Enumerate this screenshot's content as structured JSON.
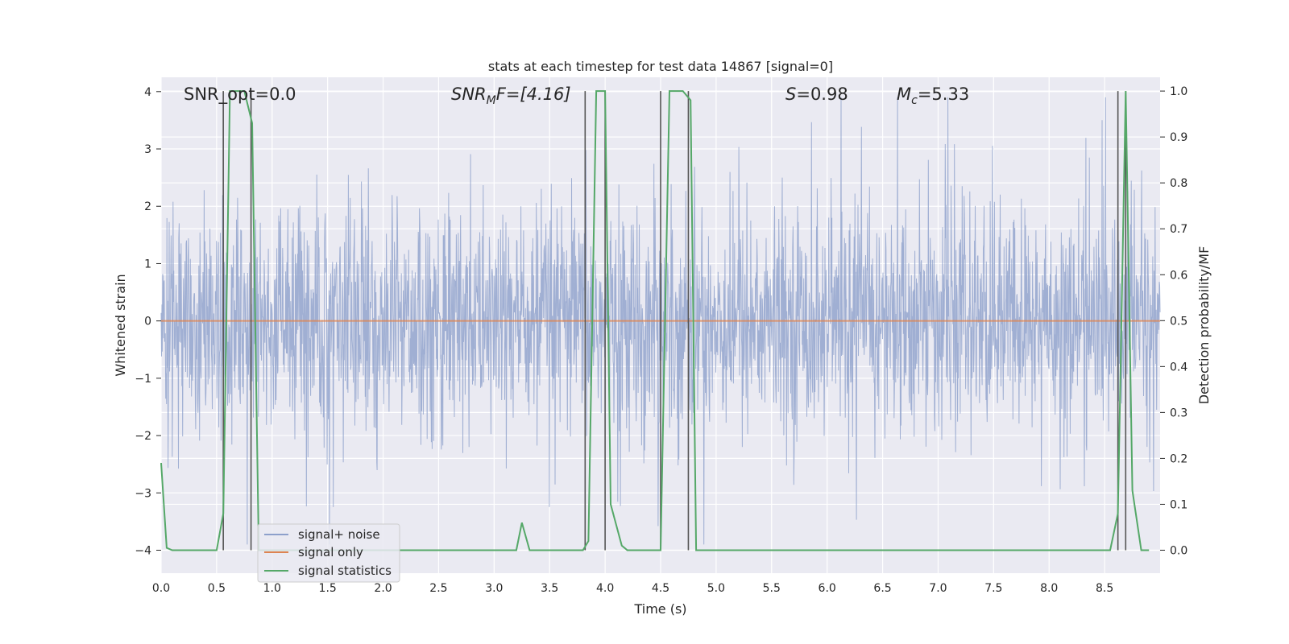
{
  "chart_data": {
    "type": "line",
    "title": "stats at each timestep for test data 14867 [signal=0]",
    "xlabel": "Time (s)",
    "ylabel": "Whitened strain",
    "ylabel_right": "Detection probability/MF",
    "xlim": [
      0.0,
      9.0
    ],
    "ylim": [
      -4.4,
      4.25
    ],
    "ylim_right": [
      -0.05,
      1.03
    ],
    "x_ticks": [
      "0.0",
      "0.5",
      "1.0",
      "1.5",
      "2.0",
      "2.5",
      "3.0",
      "3.5",
      "4.0",
      "4.5",
      "5.0",
      "5.5",
      "6.0",
      "6.5",
      "7.0",
      "7.5",
      "8.0",
      "8.5"
    ],
    "y_ticks": [
      "4",
      "3",
      "2",
      "1",
      "0",
      "−1",
      "−2",
      "−3",
      "−4"
    ],
    "y_right_ticks": [
      "1.0",
      "0.9",
      "0.8",
      "0.7",
      "0.6",
      "0.5",
      "0.4",
      "0.3",
      "0.2",
      "0.1",
      "0.0"
    ],
    "grid": true,
    "legend_position": "lower-left",
    "annotations": {
      "snr_opt": "SNR_opt=0.0",
      "snr_mf_main": "SNR",
      "snr_mf_sub": "M",
      "snr_mf_rest": "F=[4.16]",
      "s_italic": "S",
      "s_value": "=0.98",
      "mc_main": "M",
      "mc_sub": "c",
      "mc_value": "=5.33"
    },
    "series": [
      {
        "name": "signal+ noise",
        "color": "#8da0cb",
        "description_values": "whitened noise, roughly -1.5..1.5 with spikes to about ±3.9",
        "amplitude": 1.5
      },
      {
        "name": "signal only",
        "color": "#dd8452",
        "x": [
          0.0,
          9.0
        ],
        "y": [
          0.0,
          0.0
        ]
      },
      {
        "name": "signal statistics",
        "color": "#55a868",
        "axis": "right",
        "x": [
          0.0,
          0.05,
          0.1,
          0.5,
          0.56,
          0.62,
          0.75,
          0.82,
          0.88,
          0.95,
          1.0,
          3.2,
          3.25,
          3.32,
          3.4,
          3.8,
          3.85,
          3.92,
          4.0,
          4.05,
          4.15,
          4.2,
          4.5,
          4.58,
          4.7,
          4.77,
          4.82,
          4.9,
          8.55,
          8.62,
          8.69,
          8.75,
          8.83,
          8.9
        ],
        "y": [
          0.19,
          0.005,
          0.0,
          0.0,
          0.08,
          1.0,
          1.0,
          0.93,
          0.0,
          0.0,
          0.0,
          0.0,
          0.06,
          0.0,
          0.0,
          0.0,
          0.02,
          1.0,
          1.0,
          0.1,
          0.01,
          0.0,
          0.0,
          1.0,
          1.0,
          0.98,
          0.0,
          0.0,
          0.0,
          0.08,
          1.0,
          0.13,
          0.0,
          0.0
        ]
      }
    ],
    "vertical_lines": [
      0.56,
      0.81,
      3.82,
      4.0,
      4.5,
      4.75,
      8.62,
      8.69
    ],
    "vertical_line_color": "#555555"
  },
  "legend": [
    {
      "label": "signal+ noise",
      "color": "#8da0cb"
    },
    {
      "label": "signal only",
      "color": "#dd8452"
    },
    {
      "label": "signal statistics",
      "color": "#55a868"
    }
  ]
}
